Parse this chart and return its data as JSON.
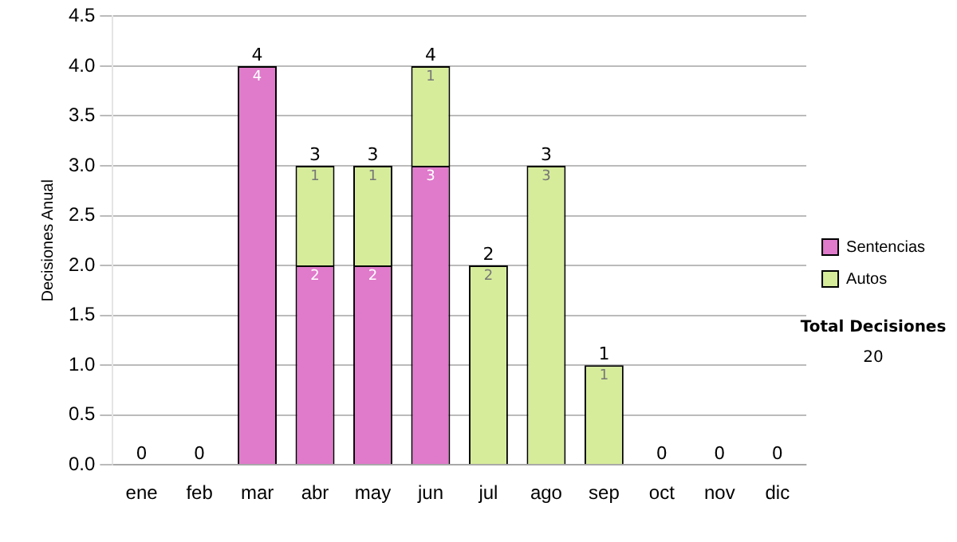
{
  "chart_data": {
    "type": "bar",
    "stacked": true,
    "ylabel": "Decisiones Anual",
    "categories": [
      "ene",
      "feb",
      "mar",
      "abr",
      "may",
      "jun",
      "jul",
      "ago",
      "sep",
      "oct",
      "nov",
      "dic"
    ],
    "series": [
      {
        "name": "Sentencias",
        "color": "#e07acb",
        "values": [
          0,
          0,
          4,
          2,
          2,
          3,
          0,
          0,
          0,
          0,
          0,
          0
        ],
        "value_labels": [
          null,
          null,
          "4",
          "2",
          "2",
          "3",
          null,
          null,
          null,
          null,
          null,
          null
        ]
      },
      {
        "name": "Autos",
        "color": "#d6ec9a",
        "values": [
          0,
          0,
          0,
          1,
          1,
          1,
          2,
          3,
          1,
          0,
          0,
          0
        ],
        "value_labels": [
          null,
          null,
          null,
          "1",
          "1",
          "1",
          "2",
          "3",
          "1",
          null,
          null,
          null
        ]
      }
    ],
    "totals": [
      "0",
      "0",
      "4",
      "3",
      "3",
      "4",
      "2",
      "3",
      "1",
      "0",
      "0",
      "0"
    ],
    "ylim": [
      0,
      4.5
    ],
    "yticks": [
      {
        "value": 0,
        "label": "0.0"
      },
      {
        "value": 0.5,
        "label": "0.5"
      },
      {
        "value": 1,
        "label": "1.0"
      },
      {
        "value": 1.5,
        "label": "1.5"
      },
      {
        "value": 2,
        "label": "2.0"
      },
      {
        "value": 2.5,
        "label": "2.5"
      },
      {
        "value": 3,
        "label": "3.0"
      },
      {
        "value": 3.5,
        "label": "3.5"
      },
      {
        "value": 4,
        "label": "4.0"
      },
      {
        "value": 4.5,
        "label": "4.5"
      }
    ],
    "grid": "y",
    "legend": "right",
    "annotations": [
      "Total Decisiones",
      "20"
    ]
  }
}
